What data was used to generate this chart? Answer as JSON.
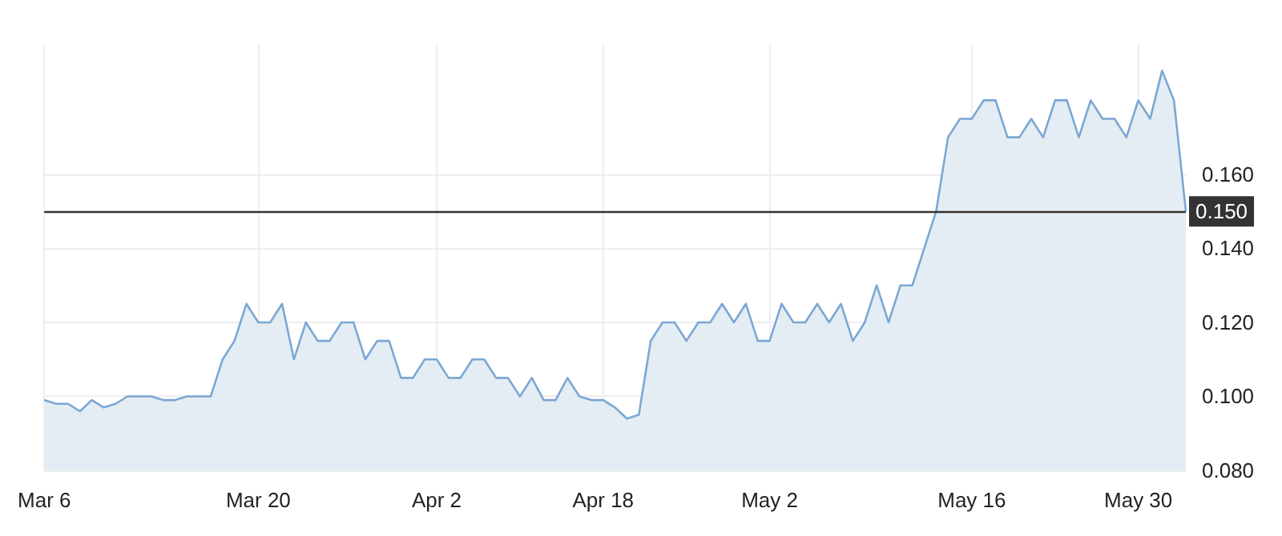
{
  "chart_data": {
    "type": "area",
    "categories": [
      "Mar 6",
      null,
      null,
      null,
      null,
      null,
      null,
      null,
      null,
      null,
      null,
      null,
      null,
      null,
      null,
      null,
      null,
      null,
      "Mar 20",
      null,
      null,
      null,
      null,
      null,
      null,
      null,
      null,
      null,
      null,
      null,
      null,
      null,
      null,
      "Apr 2",
      null,
      null,
      null,
      null,
      null,
      null,
      null,
      null,
      null,
      null,
      null,
      null,
      null,
      "Apr 18",
      null,
      null,
      null,
      null,
      null,
      null,
      null,
      null,
      null,
      null,
      null,
      null,
      null,
      "May 2",
      null,
      null,
      null,
      null,
      null,
      null,
      null,
      null,
      null,
      null,
      null,
      null,
      null,
      null,
      null,
      null,
      "May 16",
      null,
      null,
      null,
      null,
      null,
      null,
      null,
      null,
      null,
      null,
      null,
      null,
      null,
      "May 30",
      null,
      null,
      null,
      null
    ],
    "series": [
      {
        "color": "#7ba7d4",
        "values": [
          0.099,
          0.098,
          0.098,
          0.096,
          0.099,
          0.097,
          0.098,
          0.1,
          0.1,
          0.1,
          0.099,
          0.099,
          0.1,
          0.1,
          0.1,
          0.11,
          0.115,
          0.125,
          0.12,
          0.12,
          0.125,
          0.11,
          0.12,
          0.115,
          0.115,
          0.12,
          0.12,
          0.11,
          0.115,
          0.115,
          0.105,
          0.105,
          0.11,
          0.11,
          0.105,
          0.105,
          0.11,
          0.11,
          0.105,
          0.105,
          0.1,
          0.105,
          0.099,
          0.099,
          0.105,
          0.1,
          0.099,
          0.099,
          0.097,
          0.094,
          0.095,
          0.115,
          0.12,
          0.12,
          0.115,
          0.12,
          0.12,
          0.125,
          0.12,
          0.125,
          0.115,
          0.115,
          0.125,
          0.12,
          0.12,
          0.125,
          0.12,
          0.125,
          0.115,
          0.12,
          0.13,
          0.12,
          0.13,
          0.13,
          0.14,
          0.15,
          0.17,
          0.175,
          0.175,
          0.18,
          0.18,
          0.17,
          0.17,
          0.175,
          0.17,
          0.18,
          0.18,
          0.17,
          0.18,
          0.175,
          0.175,
          0.17,
          0.18,
          0.175,
          0.188,
          0.18,
          0.15
        ]
      }
    ],
    "ylim": [
      0.08,
      0.195
    ],
    "yticks": [
      {
        "value": 0.08,
        "label": "0.080"
      },
      {
        "value": 0.1,
        "label": "0.100"
      },
      {
        "value": 0.12,
        "label": "0.120"
      },
      {
        "value": 0.14,
        "label": "0.140"
      },
      {
        "value": 0.16,
        "label": "0.160"
      }
    ],
    "ref_lines": [
      {
        "axis": "y",
        "value": 0.15,
        "label": "0.150",
        "color": "#333333"
      }
    ],
    "grid": true
  }
}
